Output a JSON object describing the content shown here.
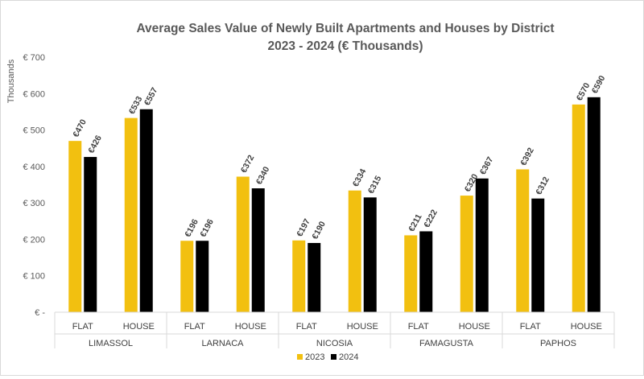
{
  "chart_data": {
    "type": "bar",
    "title_line1": "Average Sales Value of Newly Built Apartments and Houses by District",
    "title_line2": "2023 - 2024 (€ Thousands)",
    "ylabel": "Thousands",
    "ylim": [
      0,
      700
    ],
    "ytick_values": [
      0,
      100,
      200,
      300,
      400,
      500,
      600,
      700
    ],
    "ytick_labels": [
      "€ -",
      "€ 100",
      "€ 200",
      "€ 300",
      "€ 400",
      "€ 500",
      "€ 600",
      "€ 700"
    ],
    "grid": false,
    "districts": [
      "LIMASSOL",
      "LARNACA",
      "NICOSIA",
      "FAMAGUSTA",
      "PAPHOS"
    ],
    "property_types": [
      "FLAT",
      "HOUSE"
    ],
    "categories": [
      "LIMASSOL FLAT",
      "LIMASSOL HOUSE",
      "LARNACA FLAT",
      "LARNACA HOUSE",
      "NICOSIA FLAT",
      "NICOSIA HOUSE",
      "FAMAGUSTA FLAT",
      "FAMAGUSTA HOUSE",
      "PAPHOS FLAT",
      "PAPHOS HOUSE"
    ],
    "series": [
      {
        "name": "2023",
        "color": "#f2c010",
        "values": [
          470,
          533,
          196,
          372,
          197,
          334,
          211,
          320,
          392,
          570
        ],
        "labels": [
          "€470",
          "€533",
          "€196",
          "€372",
          "€197",
          "€334",
          "€211",
          "€320",
          "€392",
          "€570"
        ]
      },
      {
        "name": "2024",
        "color": "#000000",
        "values": [
          426,
          557,
          196,
          340,
          190,
          315,
          222,
          367,
          312,
          590
        ],
        "labels": [
          "€426",
          "€557",
          "€196",
          "€340",
          "€190",
          "€315",
          "€222",
          "€367",
          "€312",
          "€590"
        ]
      }
    ],
    "legend_position": "bottom"
  }
}
